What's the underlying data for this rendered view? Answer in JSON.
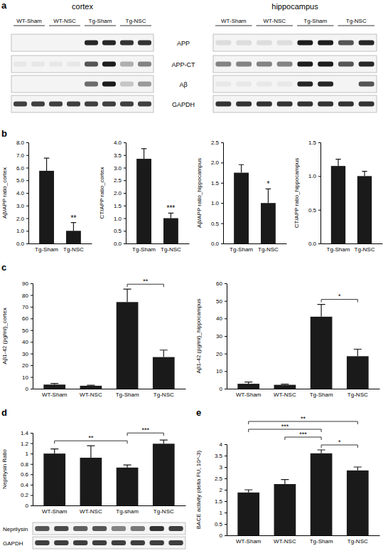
{
  "figure": {
    "panel_labels": [
      "a",
      "b",
      "c",
      "d",
      "e"
    ],
    "blot_a": {
      "regions": [
        "cortex",
        "hippocampus"
      ],
      "lanes": [
        "WT-Sham",
        "WT-NSC",
        "Tg-Sham",
        "Tg-NSC"
      ],
      "rows": [
        "APP",
        "APP-CT",
        "Aβ",
        "GAPDH"
      ]
    },
    "blot_d": {
      "rows": [
        "Neprilysin",
        "GAPDH"
      ]
    }
  },
  "chart_data": [
    {
      "type": "bar",
      "ylabel": "Aβ/APP ratio_cortex",
      "categories": [
        "Tg-Sham",
        "Tg-NSC"
      ],
      "values": [
        5.75,
        1.0
      ],
      "errors": [
        1.0,
        0.65
      ],
      "color": "#1a1a1a",
      "ylim": [
        0,
        8
      ],
      "yticks": [
        {
          "value": 0,
          "label": "0.0"
        },
        {
          "value": 1,
          "label": "1.0"
        },
        {
          "value": 2,
          "label": "2.0"
        },
        {
          "value": 3,
          "label": "3.0"
        },
        {
          "value": 4,
          "label": "4.0"
        },
        {
          "value": 5,
          "label": "5.0"
        },
        {
          "value": 6,
          "label": "6.0"
        },
        {
          "value": 7,
          "label": "7.0"
        },
        {
          "value": 8,
          "label": "8.0"
        }
      ],
      "annotations": [
        {
          "text": "**",
          "category": "Tg-NSC"
        }
      ]
    },
    {
      "type": "bar",
      "ylabel": "CT/APP ratio_cortex",
      "categories": [
        "Tg-Sham",
        "Tg-NSC"
      ],
      "values": [
        3.35,
        1.0
      ],
      "errors": [
        0.4,
        0.2
      ],
      "color": "#1a1a1a",
      "ylim": [
        0,
        4
      ],
      "yticks": [
        {
          "value": 0,
          "label": "0.0"
        },
        0.5,
        {
          "value": 1,
          "label": "1.0"
        },
        1.5,
        {
          "value": 2,
          "label": "2.0"
        },
        2.5,
        {
          "value": 3,
          "label": "3.0"
        },
        3.5,
        {
          "value": 4,
          "label": "4.0"
        }
      ],
      "annotations": [
        {
          "text": "***",
          "category": "Tg-NSC"
        }
      ]
    },
    {
      "type": "bar",
      "ylabel": "Aβ/APP ratio_hippocampus",
      "categories": [
        "Tg-Sham",
        "Tg-NSC"
      ],
      "values": [
        1.75,
        1.0
      ],
      "errors": [
        0.2,
        0.35
      ],
      "color": "#1a1a1a",
      "ylim": [
        0,
        2.5
      ],
      "yticks": [
        {
          "value": 0,
          "label": "0.0"
        },
        0.5,
        {
          "value": 1,
          "label": "1.0"
        },
        1.5,
        {
          "value": 2,
          "label": "2.0"
        },
        2.5
      ],
      "annotations": [
        {
          "text": "*",
          "category": "Tg-NSC"
        }
      ]
    },
    {
      "type": "bar",
      "ylabel": "CT/APP ratio_hippocampus",
      "categories": [
        "Tg-Sham",
        "Tg-NSC"
      ],
      "values": [
        1.15,
        1.0
      ],
      "errors": [
        0.1,
        0.07
      ],
      "color": "#1a1a1a",
      "ylim": [
        0,
        1.5
      ],
      "yticks": [
        {
          "value": 0,
          "label": "0.0"
        },
        0.5,
        {
          "value": 1,
          "label": "1.0"
        },
        1.5
      ],
      "annotations": []
    },
    {
      "type": "bar",
      "ylabel": "Aβ1-42 (pg/ml)_cortex",
      "categories": [
        "WT-Sham",
        "WT-NSC",
        "Tg-Sham",
        "Tg-NSC"
      ],
      "values": [
        3.5,
        2.5,
        74,
        27
      ],
      "errors": [
        1.0,
        0.5,
        11,
        6
      ],
      "color": "#1a1a1a",
      "ylim": [
        0,
        90
      ],
      "yticks": [
        0,
        10,
        20,
        30,
        40,
        50,
        60,
        70,
        80,
        90
      ],
      "annotations": [
        {
          "text": "**",
          "between": [
            "Tg-Sham",
            "Tg-NSC"
          ]
        }
      ]
    },
    {
      "type": "bar",
      "ylabel": "Aβ1-42 (pg/ml)_hippocampus",
      "categories": [
        "WT-Sham",
        "WT-NSC",
        "Tg-Sham",
        "Tg-NSC"
      ],
      "values": [
        2.8,
        2.2,
        41,
        18.5
      ],
      "errors": [
        1.0,
        0.4,
        7,
        4
      ],
      "color": "#1a1a1a",
      "ylim": [
        0,
        60
      ],
      "yticks": [
        0,
        10,
        20,
        30,
        40,
        50,
        60
      ],
      "annotations": [
        {
          "text": "*",
          "between": [
            "Tg-Sham",
            "Tg-NSC"
          ]
        }
      ]
    },
    {
      "type": "bar",
      "ylabel": "Neprilysin Ratio",
      "categories": [
        "WT-Sham",
        "WT-NSC",
        "Tg-sham",
        "Tg-NSC"
      ],
      "values": [
        1.0,
        0.92,
        0.73,
        1.19
      ],
      "errors": [
        0.09,
        0.23,
        0.05,
        0.07
      ],
      "color": "#1a1a1a",
      "ylim": [
        0,
        1.4
      ],
      "yticks": [
        0,
        0.2,
        0.4,
        0.6,
        0.8,
        1,
        1.2,
        1.4
      ],
      "annotations": [
        {
          "text": "**",
          "between": [
            "WT-Sham",
            "Tg-sham"
          ]
        },
        {
          "text": "***",
          "between": [
            "Tg-sham",
            "Tg-NSC"
          ]
        }
      ]
    },
    {
      "type": "bar",
      "ylabel": "BACE activity (delta FU, 10^-3)",
      "categories": [
        "WT-Sham",
        "WT-NSC",
        "Tg-Sham",
        "Tg-NSC"
      ],
      "values": [
        1.88,
        2.25,
        3.6,
        2.85
      ],
      "errors": [
        0.12,
        0.2,
        0.15,
        0.15
      ],
      "color": "#1a1a1a",
      "ylim": [
        0,
        4
      ],
      "yticks": [
        0,
        0.5,
        1,
        1.5,
        2,
        2.5,
        3,
        3.5,
        4
      ],
      "annotations": [
        {
          "text": "*",
          "between": [
            "Tg-Sham",
            "Tg-NSC"
          ]
        },
        {
          "text": "***",
          "between": [
            "WT-NSC",
            "Tg-Sham"
          ]
        },
        {
          "text": "***",
          "between": [
            "WT-Sham",
            "Tg-Sham"
          ]
        },
        {
          "text": "**",
          "between": [
            "WT-Sham",
            "Tg-NSC"
          ]
        }
      ]
    }
  ]
}
